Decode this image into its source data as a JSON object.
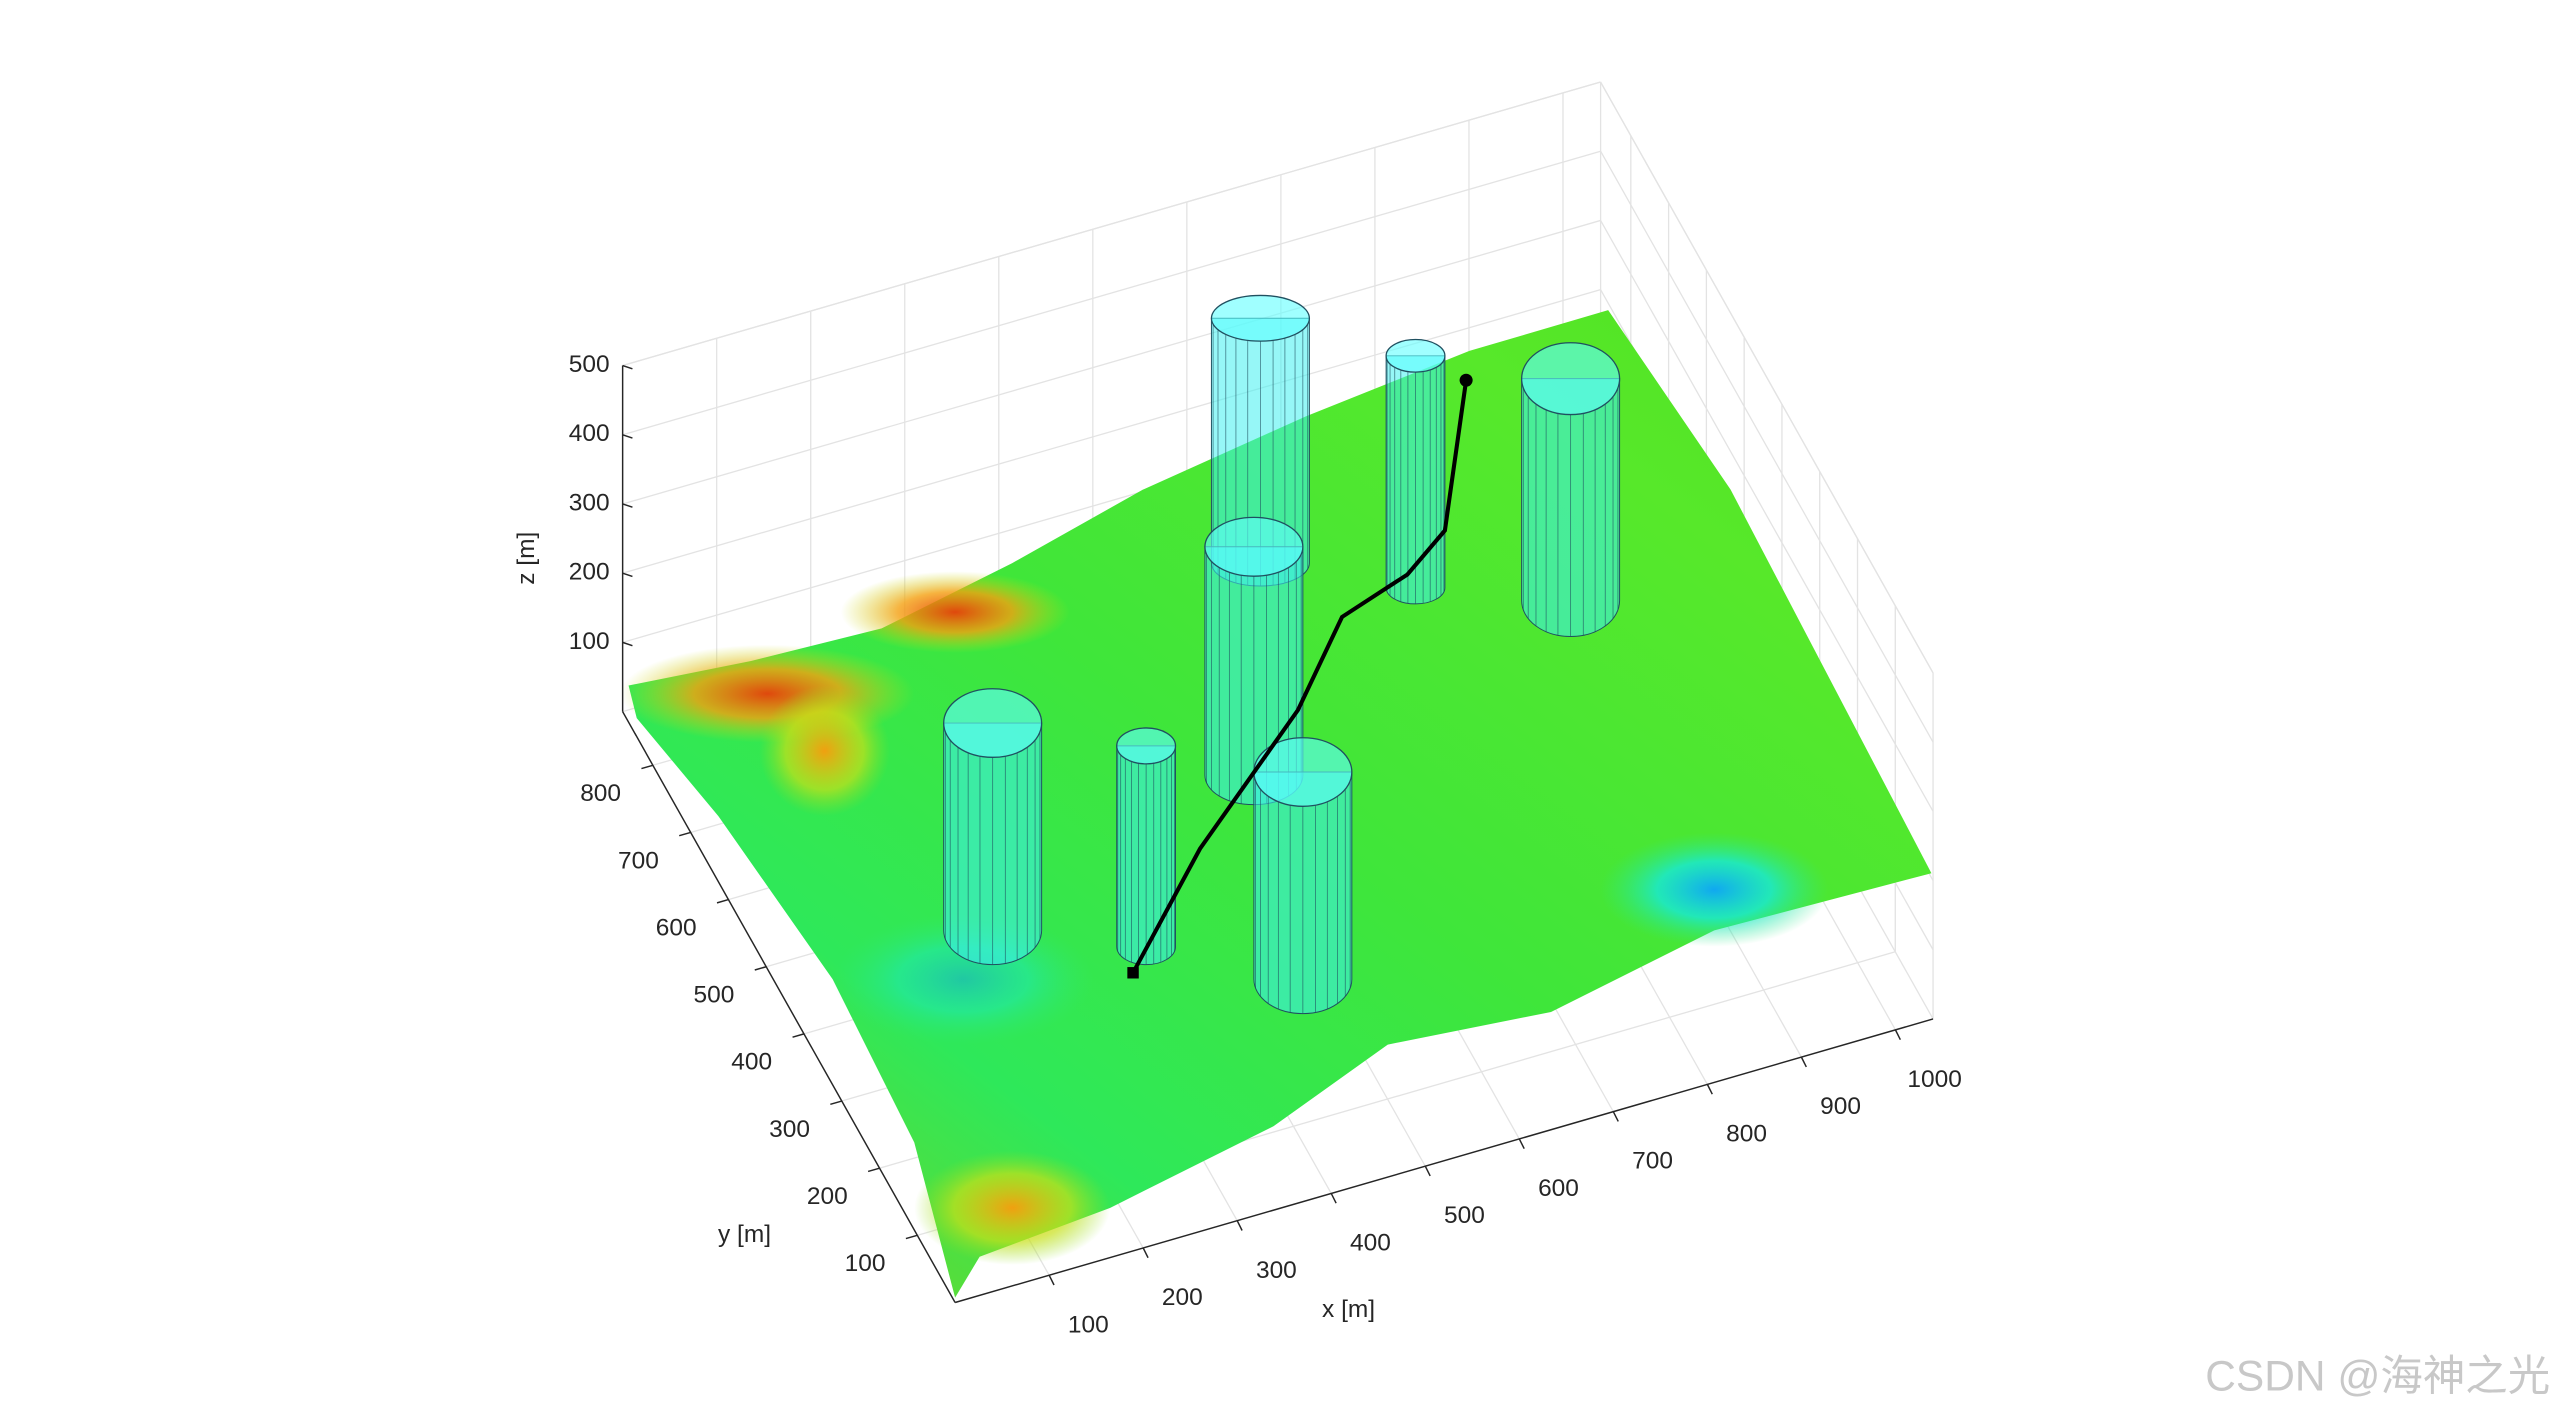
{
  "chart_data": {
    "type": "surface",
    "xlabel": "x [m]",
    "ylabel": "y [m]",
    "zlabel": "z [m]",
    "xlim": [
      0,
      1040
    ],
    "ylim": [
      0,
      880
    ],
    "zlim": [
      0,
      500
    ],
    "xticks": [
      100,
      200,
      300,
      400,
      500,
      600,
      700,
      800,
      900,
      1000
    ],
    "yticks": [
      100,
      200,
      300,
      400,
      500,
      600,
      700,
      800
    ],
    "zticks": [
      100,
      200,
      300,
      400,
      500
    ],
    "grid": true
  },
  "watermark": "CSDN @海神之光"
}
